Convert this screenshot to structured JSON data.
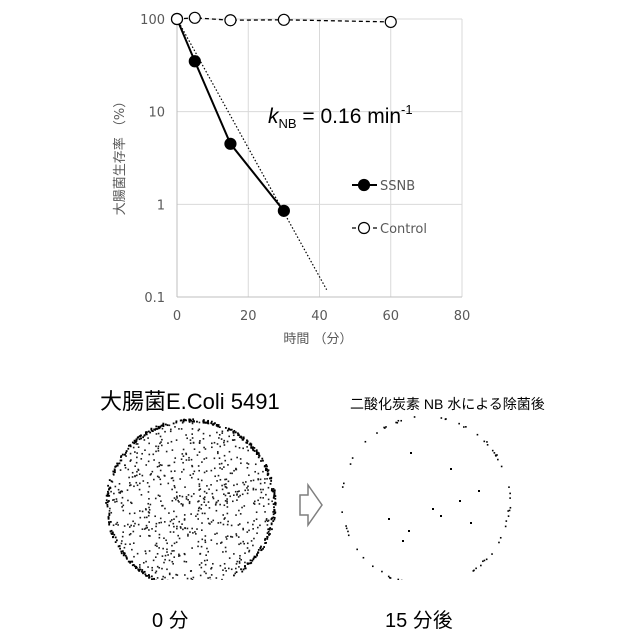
{
  "chart_data": {
    "type": "line",
    "y_scale": "log",
    "xlabel": "時間 （分）",
    "ylabel": "大腸菌生存率 （%）",
    "xlim": [
      0,
      80
    ],
    "ylim": [
      0.1,
      100
    ],
    "x_ticks": [
      "0",
      "20",
      "40",
      "60",
      "80"
    ],
    "y_ticks": [
      "0.1",
      "1",
      "10",
      "100"
    ],
    "grid": true,
    "legend_position": "right",
    "series": [
      {
        "name": "SSNB",
        "marker": "filled-circle",
        "line": "solid",
        "color": "#000000",
        "x": [
          0,
          5,
          15,
          30
        ],
        "y": [
          100,
          35,
          4.5,
          0.85
        ]
      },
      {
        "name": "Control",
        "marker": "open-circle",
        "line": "dashed",
        "color": "#000000",
        "x": [
          0,
          5,
          15,
          30,
          60
        ],
        "y": [
          100,
          103,
          97,
          98,
          93
        ]
      }
    ],
    "fit_line": {
      "style": "dotted",
      "x": [
        0,
        42
      ],
      "y": [
        100,
        0.12
      ]
    },
    "annotation": {
      "k_symbol": "k",
      "k_subscript": "NB",
      "k_value": " = 0.16 min",
      "k_superscript": "-1"
    }
  },
  "photos": {
    "left_title": "大腸菌E.Coli 5491",
    "right_title": "二酸化炭素 NB 水による除菌後",
    "left_label": "0 分",
    "right_label": "15 分後"
  }
}
